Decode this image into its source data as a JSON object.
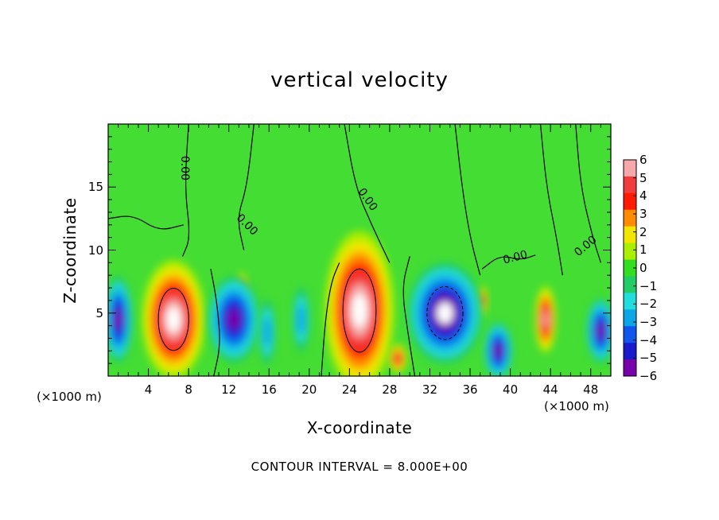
{
  "chart_data": {
    "type": "heatmap",
    "title": "vertical velocity",
    "xlabel": "X-coordinate",
    "ylabel": "Z-coordinate",
    "x_unit_left": "(×1000 m)",
    "x_unit_right": "(×1000 m)",
    "footer": "CONTOUR INTERVAL = 8.000E+00",
    "xlim": [
      0,
      50
    ],
    "ylim": [
      0,
      20
    ],
    "x_ticks": [
      "4",
      "8",
      "12",
      "16",
      "20",
      "24",
      "28",
      "32",
      "36",
      "40",
      "44",
      "48"
    ],
    "y_ticks": [
      "5",
      "10",
      "15"
    ],
    "colorbar": {
      "labels": [
        "6",
        "5",
        "4",
        "3",
        "2",
        "1",
        "0",
        "−1",
        "−2",
        "−3",
        "−4",
        "−5",
        "−6"
      ],
      "colors": [
        "#f7a8a8",
        "#f03c3c",
        "#ff1a00",
        "#ff8c00",
        "#f2e600",
        "#aaee00",
        "#33dd22",
        "#22cc66",
        "#22dddd",
        "#0aa6e6",
        "#1155ee",
        "#1a1acc",
        "#7700aa"
      ]
    },
    "contour_labels": [
      "0.00",
      "0.00",
      "0.00",
      "0.00",
      "0.00"
    ],
    "features": [
      {
        "x": 6.5,
        "z": 4.5,
        "w": 5.5,
        "h": 8.2,
        "value": 6
      },
      {
        "x": 25.0,
        "z": 5.2,
        "w": 6.0,
        "h": 11.0,
        "value": 6
      },
      {
        "x": 43.5,
        "z": 4.5,
        "w": 1.8,
        "h": 4.6,
        "value": 5
      },
      {
        "x": 13.3,
        "z": 6.8,
        "w": 1.0,
        "h": 2.5,
        "value": 4
      },
      {
        "x": 37.2,
        "z": 6.0,
        "w": 0.9,
        "h": 2.0,
        "value": 4
      },
      {
        "x": 28.8,
        "z": 1.4,
        "w": 1.6,
        "h": 2.0,
        "value": 4
      },
      {
        "x": 33.5,
        "z": 5.0,
        "w": 6.5,
        "h": 7.0,
        "value": -6
      },
      {
        "x": 12.5,
        "z": 4.5,
        "w": 4.5,
        "h": 6.0,
        "value": -5
      },
      {
        "x": 1.0,
        "z": 4.5,
        "w": 2.5,
        "h": 6.0,
        "value": -5
      },
      {
        "x": 49.0,
        "z": 3.6,
        "w": 2.5,
        "h": 4.5,
        "value": -5
      },
      {
        "x": 38.8,
        "z": 2.0,
        "w": 2.5,
        "h": 4.0,
        "value": -5
      },
      {
        "x": 19.2,
        "z": 4.5,
        "w": 1.5,
        "h": 4.5,
        "value": -2
      },
      {
        "x": 15.8,
        "z": 3.5,
        "w": 1.5,
        "h": 4.5,
        "value": -2
      }
    ]
  }
}
